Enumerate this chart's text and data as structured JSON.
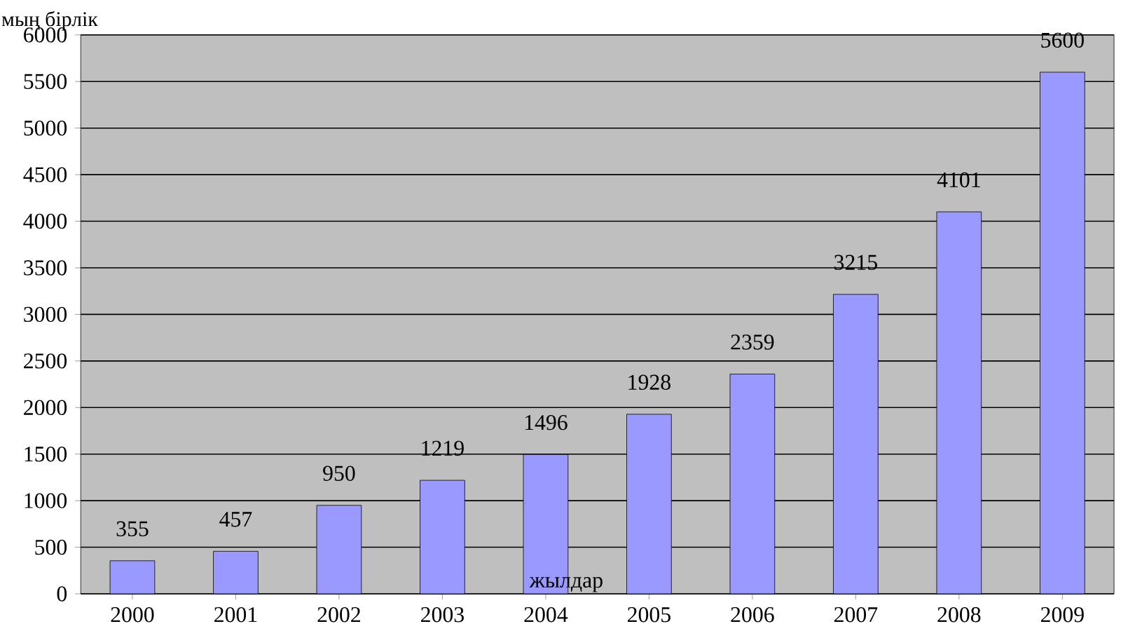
{
  "chart_data": {
    "type": "bar",
    "ylabel": "мың бірлік",
    "xlabel": "жылдар",
    "categories": [
      "2000",
      "2001",
      "2002",
      "2003",
      "2004",
      "2005",
      "2006",
      "2007",
      "2008",
      "2009"
    ],
    "values": [
      355,
      457,
      950,
      1219,
      1496,
      1928,
      2359,
      3215,
      4101,
      5600
    ],
    "color": "#9999ff",
    "ylim": [
      0,
      6000
    ],
    "yticks": [
      0,
      500,
      1000,
      1500,
      2000,
      2500,
      3000,
      3500,
      4000,
      4500,
      5000,
      5500,
      6000
    ],
    "grid": "y",
    "data_labels": true
  }
}
